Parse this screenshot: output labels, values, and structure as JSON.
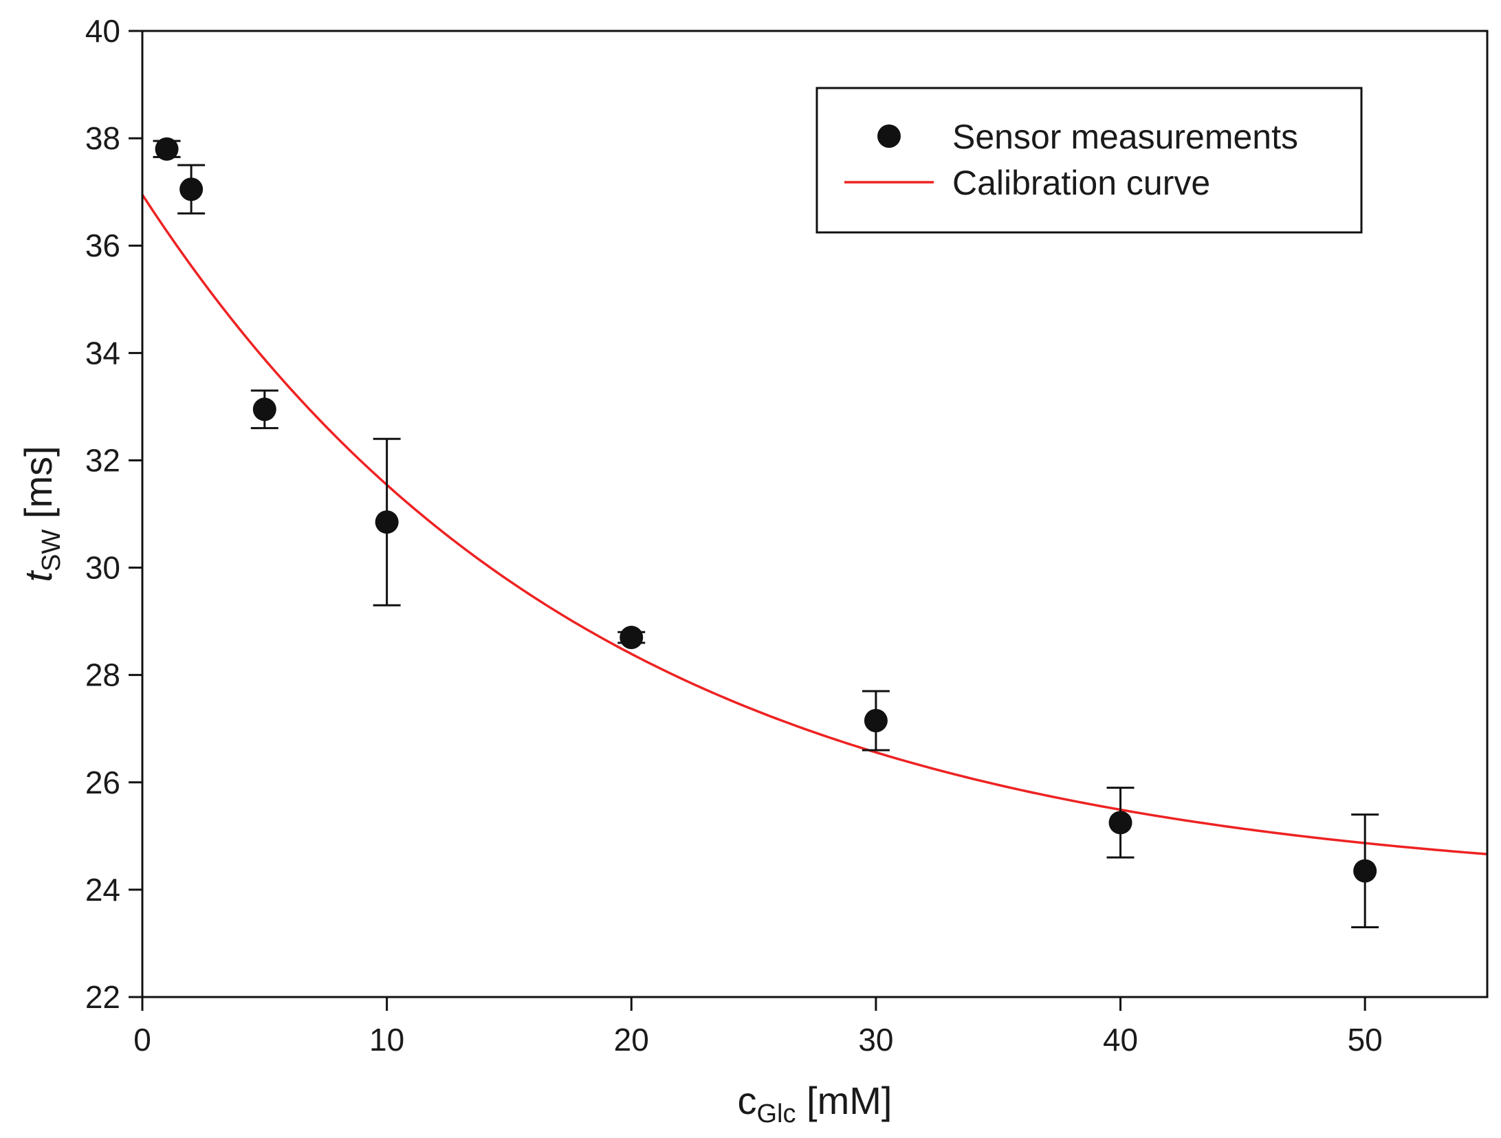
{
  "chart_data": {
    "type": "scatter",
    "title": "",
    "xlabel": {
      "main": "c",
      "sub": "Glc",
      "unit": " [mM]"
    },
    "ylabel": {
      "main": "t",
      "sub": "SW",
      "unit": " [ms]"
    },
    "xlim": [
      0,
      55
    ],
    "ylim": [
      22,
      40
    ],
    "xticks": [
      0,
      10,
      20,
      30,
      40,
      50
    ],
    "yticks": [
      22,
      24,
      26,
      28,
      30,
      32,
      34,
      36,
      38,
      40
    ],
    "grid": false,
    "legend_position": "top-right",
    "series": [
      {
        "name": "Sensor measurements",
        "kind": "scatter",
        "color": "#111111",
        "points": [
          {
            "x": 1,
            "y": 37.8,
            "err": 0.15
          },
          {
            "x": 2,
            "y": 37.05,
            "err": 0.45
          },
          {
            "x": 5,
            "y": 32.95,
            "err": 0.35
          },
          {
            "x": 10,
            "y": 30.85,
            "err": 1.55
          },
          {
            "x": 20,
            "y": 28.7,
            "err": 0.1
          },
          {
            "x": 30,
            "y": 27.15,
            "err": 0.55
          },
          {
            "x": 40,
            "y": 25.25,
            "err": 0.65
          },
          {
            "x": 50,
            "y": 24.35,
            "err": 1.05
          }
        ]
      },
      {
        "name": "Calibration curve",
        "kind": "line",
        "color": "#ee2222",
        "model": {
          "form": "y = y0 + a*exp(-x/tau)",
          "y0": 24.0,
          "a": 12.95,
          "tau": 18.5
        }
      }
    ]
  }
}
